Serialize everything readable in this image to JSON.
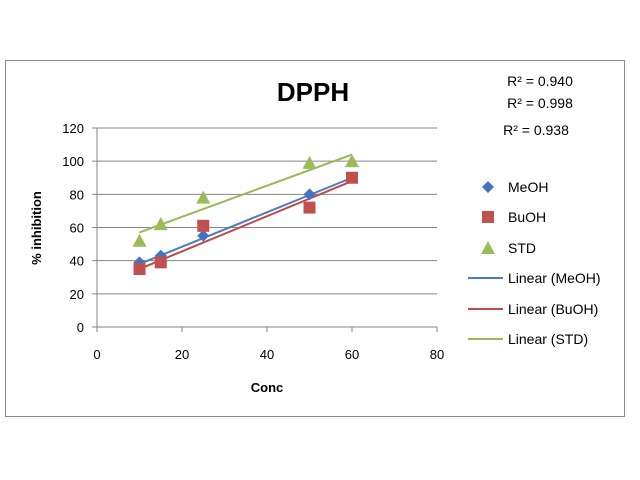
{
  "chart_data": {
    "type": "scatter",
    "title": "DPPH",
    "xlabel": "Conc",
    "ylabel": "% inhibition",
    "xlim": [
      0,
      80
    ],
    "ylim": [
      0,
      120
    ],
    "x_ticks": [
      "0",
      "20",
      "40",
      "60",
      "80"
    ],
    "y_ticks": [
      "0",
      "20",
      "40",
      "60",
      "80",
      "100",
      "120"
    ],
    "grid": "horizontal",
    "legend_position": "right",
    "series": [
      {
        "name": "MeOH",
        "marker": "diamond",
        "color": "#4472C4",
        "x": [
          10,
          15,
          25,
          50,
          60
        ],
        "y": [
          39,
          43,
          55,
          80,
          90
        ],
        "trendline": {
          "name": "Linear (MeOH)",
          "color": "#4A7EBB",
          "r2": "R² = 0.940",
          "x": [
            10,
            60
          ],
          "y": [
            38,
            90
          ]
        }
      },
      {
        "name": "BuOH",
        "marker": "square",
        "color": "#C0504D",
        "x": [
          10,
          15,
          25,
          50,
          60
        ],
        "y": [
          35,
          39,
          61,
          72,
          90
        ],
        "trendline": {
          "name": "Linear (BuOH)",
          "color": "#BE4B48",
          "r2": "R² = 0.998",
          "x": [
            10,
            60
          ],
          "y": [
            35,
            88
          ]
        }
      },
      {
        "name": "STD",
        "marker": "triangle",
        "color": "#9BBB59",
        "x": [
          10,
          15,
          25,
          50,
          60
        ],
        "y": [
          52,
          62,
          78,
          99,
          100
        ],
        "trendline": {
          "name": "Linear (STD)",
          "color": "#98B954",
          "r2": "R² = 0.938",
          "x": [
            10,
            60
          ],
          "y": [
            57,
            104
          ]
        }
      }
    ]
  }
}
